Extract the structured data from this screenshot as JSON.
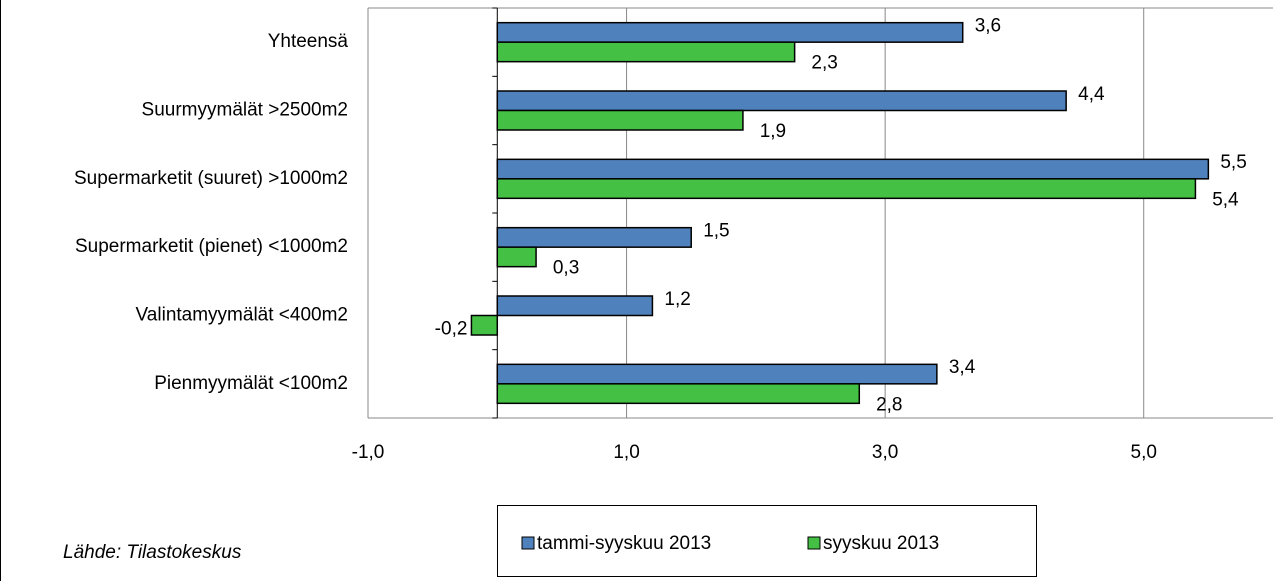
{
  "chart_data": {
    "type": "bar",
    "orientation": "horizontal",
    "categories": [
      "Yhteensä",
      "Suurmyymälät >2500m2",
      "Supermarketit (suuret) >1000m2",
      "Supermarketit (pienet) <1000m2",
      "Valintamyymälät <400m2",
      "Pienmyymälät  <100m2"
    ],
    "series": [
      {
        "name": "tammi-syyskuu 2013",
        "color": "#4f81bd",
        "values": [
          3.6,
          4.4,
          5.5,
          1.5,
          1.2,
          3.4
        ],
        "value_labels": [
          "3,6",
          "4,4",
          "5,5",
          "1,5",
          "1,2",
          "3,4"
        ]
      },
      {
        "name": "syyskuu 2013",
        "color": "#44c044",
        "values": [
          2.3,
          1.9,
          5.4,
          0.3,
          -0.2,
          2.8
        ],
        "value_labels": [
          "2,3",
          "1,9",
          "5,4",
          "0,3",
          "-0,2",
          "2,8"
        ]
      }
    ],
    "xlim": [
      -1,
      6
    ],
    "xticks": [
      {
        "value": -1,
        "label": "-1,0"
      },
      {
        "value": 1,
        "label": "1,0"
      },
      {
        "value": 3,
        "label": "3,0"
      },
      {
        "value": 5,
        "label": "5,0"
      }
    ],
    "grid": true,
    "legend": "bottom",
    "source": "Lähde: Tilastokeskus"
  }
}
